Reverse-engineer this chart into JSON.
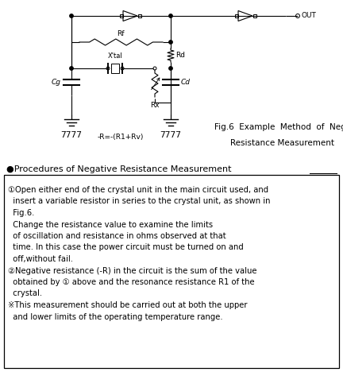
{
  "fig_caption_line1": "Fig.6  Example  Method  of  Negative",
  "fig_caption_line2": "Resistance Measurement",
  "heading": "●Procedures of Negative Resistance Measurement",
  "item1_line1": "①Open either end of the crystal unit in the main circuit used, and",
  "item1_line2": "  insert a variable resistor in series to the crystal unit, as shown in",
  "item1_line3": "  Fig.6.",
  "item1_line4": "  Change the resistance value to examine the limits",
  "item1_line5": "  of oscillation and resistance in ohms observed at that",
  "item1_line6": "  time. In this case the power circuit must be turned on and",
  "item1_line7": "  off,without fail.",
  "item2_line1": "②Negative resistance (-R) in the circuit is the sum of the value",
  "item2_line2": "  obtained by ① above and the resonance resistance R1 of the",
  "item2_line3": "  crystal.",
  "item3_line1": "※This measurement should be carried out at both the upper",
  "item3_line2": "  and lower limits of the operating temperature range.",
  "background_color": "#ffffff",
  "text_color": "#000000"
}
